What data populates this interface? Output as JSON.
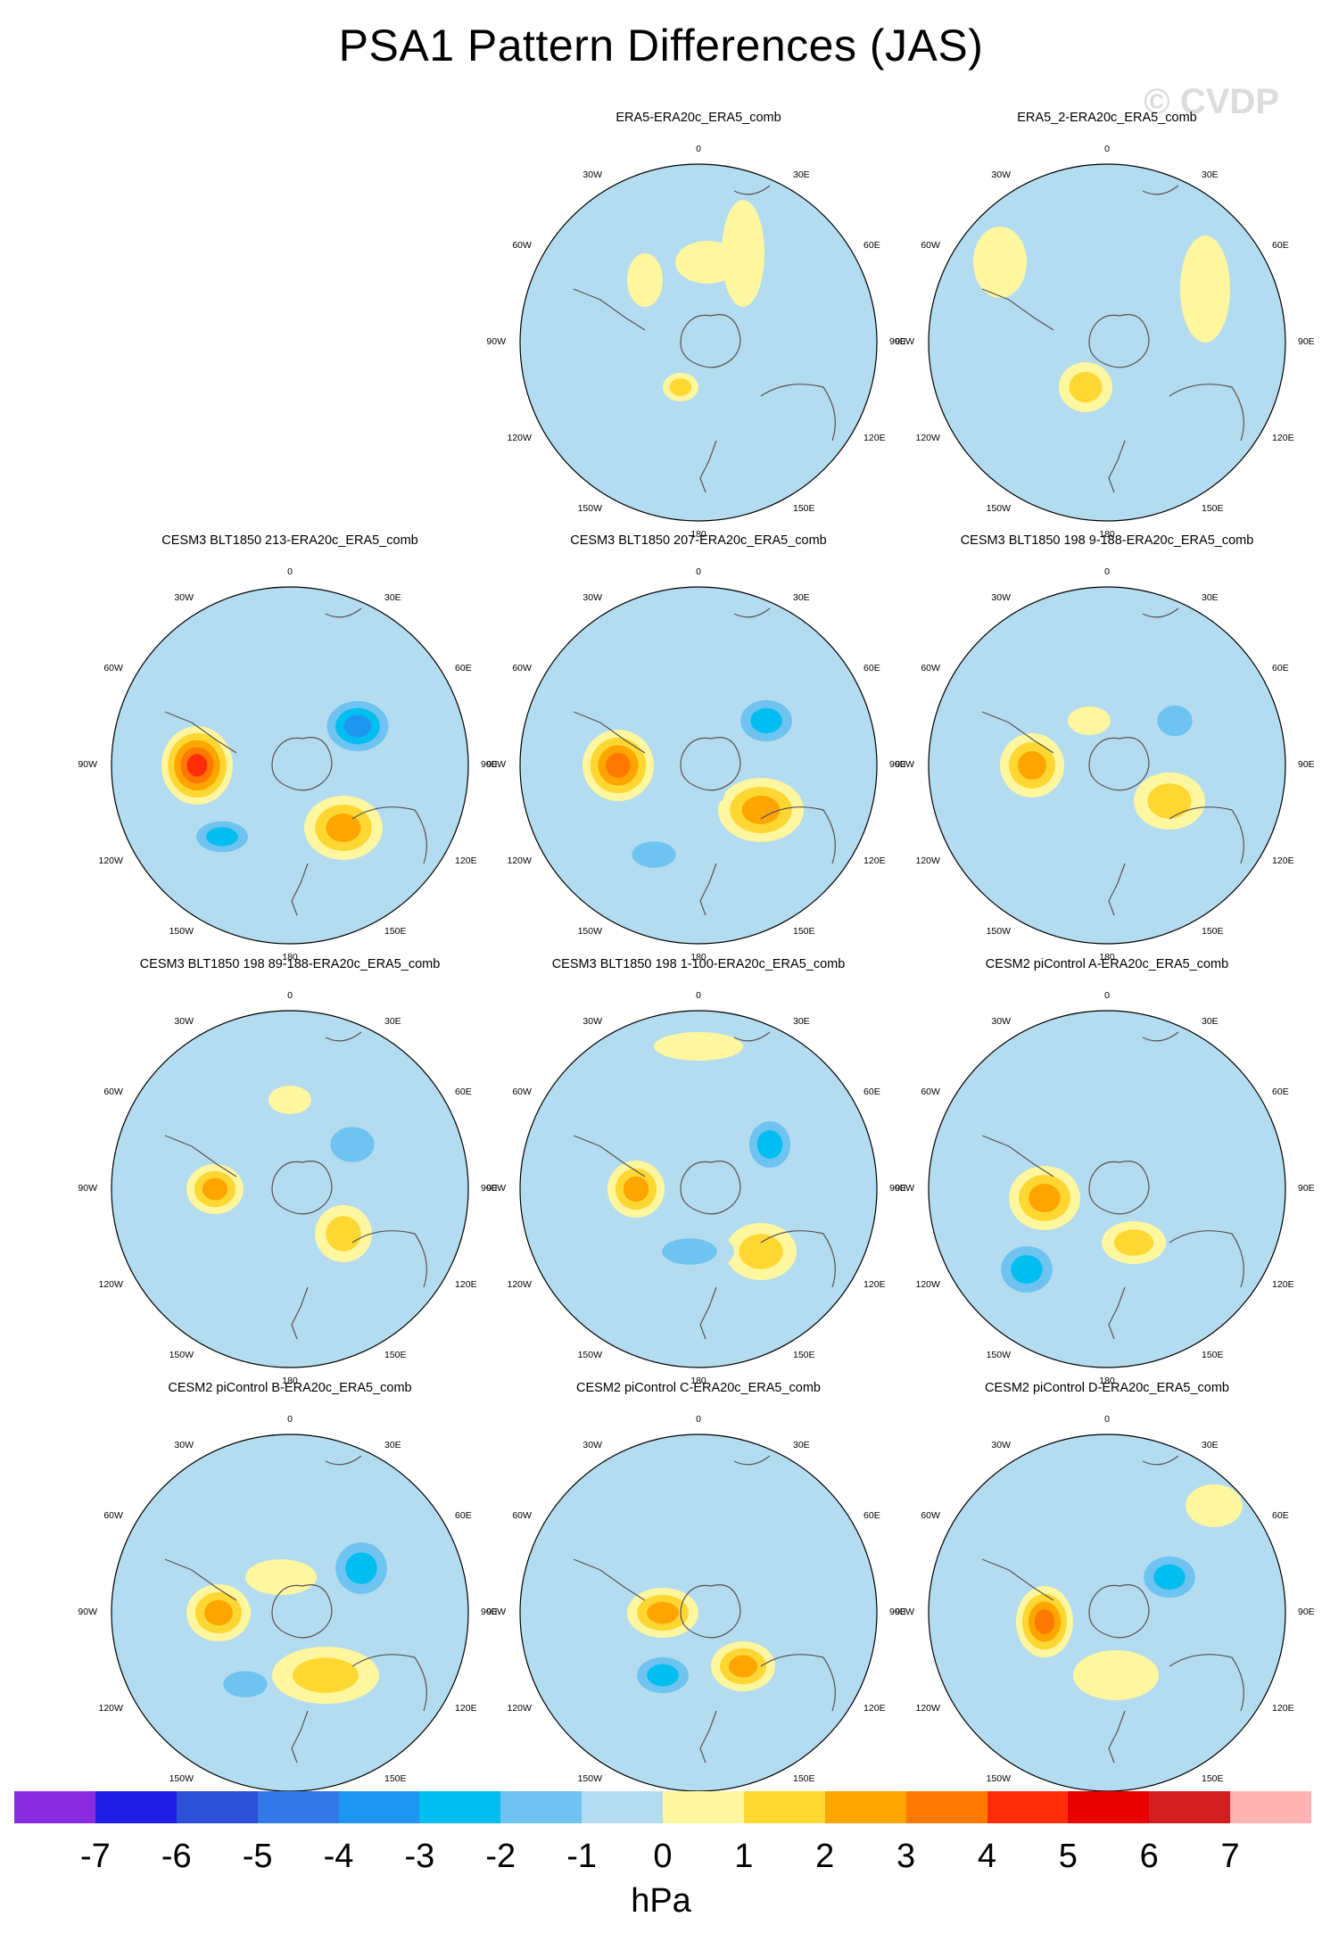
{
  "title": "PSA1 Pattern Differences (JAS)",
  "watermark": "© CVDP",
  "longitude_labels": {
    "top": "0",
    "upper_right": "30E",
    "right_upper": "60E",
    "right": "90E",
    "right_lower": "120E",
    "lower_right": "150E",
    "bottom": "180",
    "lower_left": "150W",
    "left_lower": "120W",
    "left": "90W",
    "left_upper": "60W",
    "upper_left": "30W"
  },
  "colorbar": {
    "colors": [
      "#8a2be2",
      "#1e1ee6",
      "#2d50d8",
      "#3278e6",
      "#1e96f0",
      "#00bef0",
      "#6ec3f0",
      "#b4dcf0",
      "#fff6a0",
      "#ffd732",
      "#ffa500",
      "#ff7800",
      "#ff2d0a",
      "#e60000",
      "#d21e1e",
      "#ffb4b4"
    ],
    "tick_labels": [
      "-7",
      "-6",
      "-5",
      "-4",
      "-3",
      "-2",
      "-1",
      "0",
      "1",
      "2",
      "3",
      "4",
      "5",
      "6",
      "7"
    ],
    "unit": "hPa"
  },
  "panels": [
    {
      "title": "ERA5-ERA20c_ERA5_comb",
      "blobs": [
        [
          0.05,
          0.45,
          0.18,
          0.12,
          1
        ],
        [
          -0.45,
          -0.15,
          0.12,
          0.08,
          -1
        ],
        [
          0.25,
          0.5,
          0.12,
          0.3,
          1
        ],
        [
          -0.1,
          -0.25,
          0.1,
          0.08,
          2
        ],
        [
          -0.3,
          0.35,
          0.1,
          0.15,
          1
        ]
      ]
    },
    {
      "title": "ERA5_2-ERA20c_ERA5_comb",
      "blobs": [
        [
          -0.5,
          -0.2,
          0.14,
          0.2,
          -1
        ],
        [
          -0.12,
          -0.25,
          0.15,
          0.14,
          2
        ],
        [
          0.15,
          -0.55,
          0.18,
          0.1,
          -1
        ],
        [
          0.55,
          0.3,
          0.14,
          0.3,
          1
        ],
        [
          -0.6,
          0.45,
          0.15,
          0.2,
          1
        ]
      ]
    },
    {
      "title": "CESM3 BLT1850 213-ERA20c_ERA5_comb",
      "blobs": [
        [
          -0.52,
          0.0,
          0.2,
          0.22,
          5
        ],
        [
          0.38,
          0.22,
          0.22,
          0.18,
          -4
        ],
        [
          0.3,
          -0.35,
          0.22,
          0.18,
          3
        ],
        [
          -0.38,
          -0.4,
          0.2,
          0.12,
          -3
        ],
        [
          -0.2,
          0.4,
          0.1,
          0.1,
          -1
        ]
      ]
    },
    {
      "title": "CESM3 BLT1850 207-ERA20c_ERA5_comb",
      "blobs": [
        [
          -0.45,
          0.0,
          0.2,
          0.2,
          4
        ],
        [
          0.38,
          0.25,
          0.2,
          0.16,
          -3
        ],
        [
          0.35,
          -0.25,
          0.24,
          0.18,
          3
        ],
        [
          -0.25,
          -0.5,
          0.2,
          0.12,
          -2
        ],
        [
          0.05,
          -0.15,
          0.1,
          0.08,
          -1
        ]
      ]
    },
    {
      "title": "CESM3 BLT1850 198 9-188-ERA20c_ERA5_comb",
      "blobs": [
        [
          -0.42,
          0.0,
          0.18,
          0.18,
          3
        ],
        [
          0.38,
          0.25,
          0.16,
          0.14,
          -2
        ],
        [
          0.35,
          -0.2,
          0.2,
          0.16,
          2
        ],
        [
          -0.2,
          -0.4,
          0.22,
          0.12,
          -1
        ],
        [
          -0.1,
          0.25,
          0.12,
          0.08,
          1
        ]
      ]
    },
    {
      "title": "CESM3 BLT1850 198 89-188-ERA20c_ERA5_comb",
      "blobs": [
        [
          -0.42,
          0.0,
          0.16,
          0.14,
          3
        ],
        [
          0.35,
          0.25,
          0.2,
          0.16,
          -2
        ],
        [
          0.3,
          -0.25,
          0.16,
          0.16,
          2
        ],
        [
          -0.25,
          -0.4,
          0.2,
          0.1,
          -1
        ],
        [
          0.0,
          0.5,
          0.12,
          0.08,
          1
        ]
      ]
    },
    {
      "title": "CESM3 BLT1850 198 1-100-ERA20c_ERA5_comb",
      "blobs": [
        [
          -0.35,
          0.0,
          0.16,
          0.16,
          3
        ],
        [
          0.4,
          0.25,
          0.16,
          0.18,
          -3
        ],
        [
          0.35,
          -0.35,
          0.2,
          0.16,
          2
        ],
        [
          -0.05,
          -0.35,
          0.25,
          0.12,
          -2
        ],
        [
          0.0,
          0.8,
          0.25,
          0.08,
          1
        ]
      ]
    },
    {
      "title": "CESM2 piControl A-ERA20c_ERA5_comb",
      "blobs": [
        [
          -0.35,
          -0.05,
          0.2,
          0.18,
          3
        ],
        [
          -0.45,
          -0.45,
          0.2,
          0.18,
          -3
        ],
        [
          0.45,
          0.15,
          0.16,
          0.2,
          -1
        ],
        [
          0.15,
          -0.3,
          0.18,
          0.12,
          2
        ],
        [
          -0.1,
          0.55,
          0.16,
          0.12,
          -1
        ]
      ]
    },
    {
      "title": "CESM2 piControl B-ERA20c_ERA5_comb",
      "blobs": [
        [
          -0.4,
          0.0,
          0.18,
          0.16,
          3
        ],
        [
          0.4,
          0.25,
          0.2,
          0.2,
          -3
        ],
        [
          -0.25,
          -0.4,
          0.2,
          0.12,
          -2
        ],
        [
          0.2,
          -0.35,
          0.3,
          0.16,
          2
        ],
        [
          -0.05,
          0.2,
          0.2,
          0.1,
          1
        ]
      ]
    },
    {
      "title": "CESM2 piControl C-ERA20c_ERA5_comb",
      "blobs": [
        [
          -0.2,
          0.0,
          0.2,
          0.14,
          3
        ],
        [
          0.25,
          -0.3,
          0.18,
          0.14,
          3
        ],
        [
          -0.2,
          -0.35,
          0.2,
          0.14,
          -3
        ],
        [
          -0.2,
          0.45,
          0.16,
          0.12,
          -1
        ],
        [
          0.4,
          0.2,
          0.14,
          0.14,
          -1
        ]
      ]
    },
    {
      "title": "CESM2 piControl D-ERA20c_ERA5_comb",
      "blobs": [
        [
          -0.35,
          -0.05,
          0.16,
          0.2,
          4
        ],
        [
          0.35,
          0.2,
          0.2,
          0.16,
          -3
        ],
        [
          -0.35,
          -0.4,
          0.24,
          0.12,
          -1
        ],
        [
          0.05,
          -0.35,
          0.24,
          0.14,
          1
        ],
        [
          0.6,
          0.6,
          0.16,
          0.12,
          1
        ]
      ]
    }
  ]
}
